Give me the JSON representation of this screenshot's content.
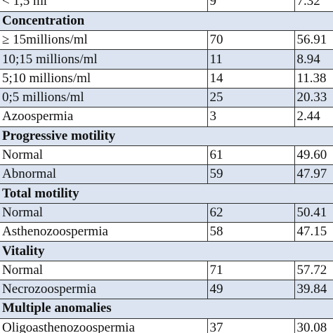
{
  "rows": [
    {
      "type": "data",
      "shade": "plain",
      "label": "< 1,5 ml",
      "n": "9",
      "pct": "7.32"
    },
    {
      "type": "section",
      "label": "Concentration"
    },
    {
      "type": "data",
      "shade": "plain",
      "label": "≥ 15millions/ml",
      "n": "70",
      "pct": "56.91"
    },
    {
      "type": "data",
      "shade": "shaded",
      "label": "10;15 millions/ml",
      "n": "11",
      "pct": "8.94"
    },
    {
      "type": "data",
      "shade": "plain",
      "label": "5;10 millions/ml",
      "n": "14",
      "pct": "11.38"
    },
    {
      "type": "data",
      "shade": "shaded",
      "label": "0;5 millions/ml",
      "n": "25",
      "pct": "20.33"
    },
    {
      "type": "data",
      "shade": "plain",
      "label": "Azoospermia",
      "n": "3",
      "pct": "2.44"
    },
    {
      "type": "section",
      "label": "Progressive motility"
    },
    {
      "type": "data",
      "shade": "plain",
      "label": "Normal",
      "n": "61",
      "pct": "49.60"
    },
    {
      "type": "data",
      "shade": "shaded",
      "label": "Abnormal",
      "n": "59",
      "pct": "47.97"
    },
    {
      "type": "section",
      "label": "Total motility"
    },
    {
      "type": "data",
      "shade": "shaded",
      "label": "Normal",
      "n": "62",
      "pct": "50.41"
    },
    {
      "type": "data",
      "shade": "plain",
      "label": "Asthenozoospermia",
      "n": "58",
      "pct": "47.15"
    },
    {
      "type": "section",
      "label": "Vitality"
    },
    {
      "type": "data",
      "shade": "plain",
      "label": "Normal",
      "n": "71",
      "pct": "57.72"
    },
    {
      "type": "data",
      "shade": "shaded",
      "label": "Necrozoospermia",
      "n": "49",
      "pct": "39.84"
    },
    {
      "type": "section",
      "label": "Multiple anomalies"
    },
    {
      "type": "data",
      "shade": "plain",
      "label": "Oligoasthenozoospermia",
      "n": "37",
      "pct": "30.08"
    }
  ]
}
